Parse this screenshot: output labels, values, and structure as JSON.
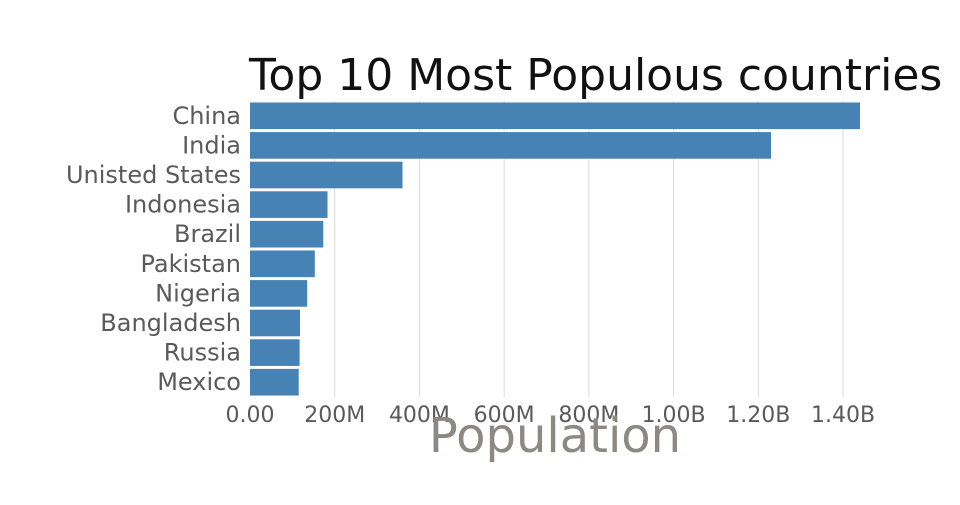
{
  "chart_data": {
    "type": "bar",
    "orientation": "horizontal",
    "title": "Top 10 Most Populous countries",
    "xlabel": "Population",
    "ylabel": "",
    "categories": [
      "China",
      "India",
      "Unisted States",
      "Indonesia",
      "Brazil",
      "Pakistan",
      "Nigeria",
      "Bangladesh",
      "Russia",
      "Mexico"
    ],
    "values": [
      1440000000,
      1230000000,
      360000000,
      183000000,
      173000000,
      153000000,
      135000000,
      118000000,
      117000000,
      115000000
    ],
    "xlim": [
      0,
      1440000000
    ],
    "ticks": [
      0,
      200000000,
      400000000,
      600000000,
      800000000,
      1000000000,
      1200000000,
      1400000000
    ],
    "tick_labels": [
      "0.00",
      "200M",
      "400M",
      "600M",
      "800M",
      "1.00B",
      "1.20B",
      "1.40B"
    ],
    "bar_color": "#4682b4",
    "grid": "vertical",
    "legend": "none"
  }
}
